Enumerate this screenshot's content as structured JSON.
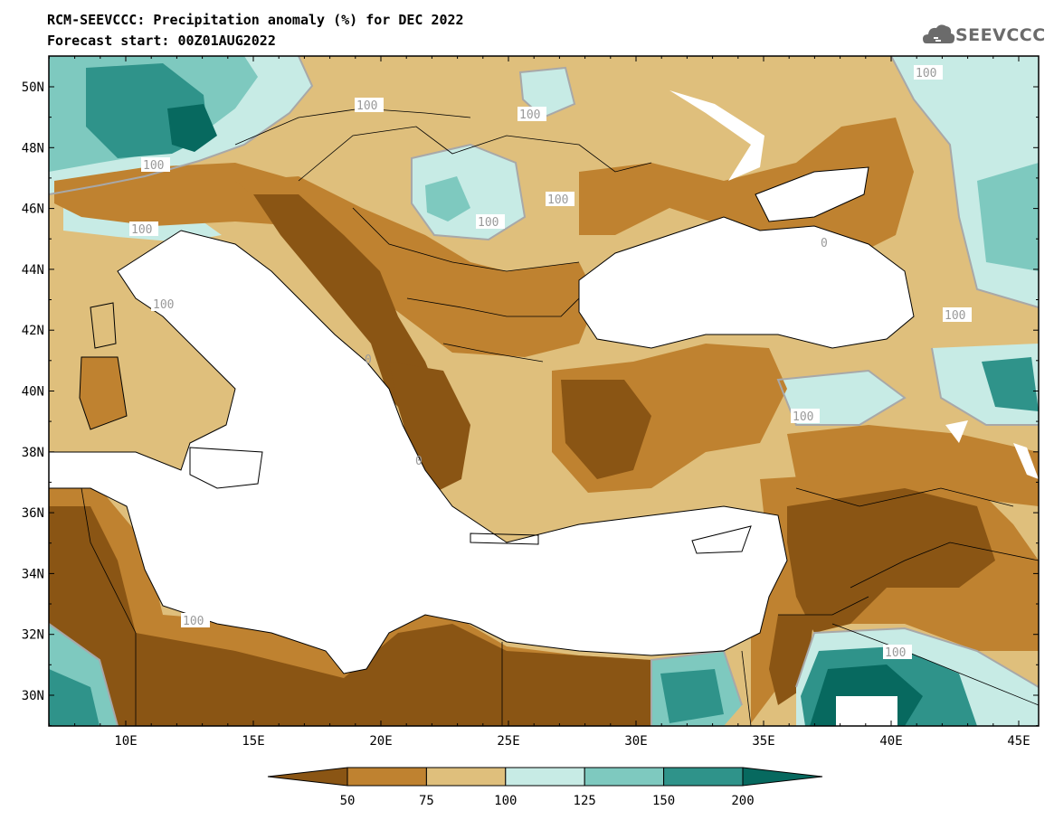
{
  "header": {
    "title_line1": "RCM-SEEVCCC: Precipitation anomaly (%) for DEC 2022",
    "title_line2": "Forecast start: 00Z01AUG2022"
  },
  "logo": {
    "text": "SEEVCCC",
    "icon": "cloud-icon"
  },
  "map": {
    "lat_labels": [
      "50N",
      "48N",
      "46N",
      "44N",
      "42N",
      "40N",
      "38N",
      "36N",
      "34N",
      "32N",
      "30N"
    ],
    "lon_labels": [
      "10E",
      "15E",
      "20E",
      "25E",
      "30E",
      "35E",
      "40E",
      "45E"
    ],
    "contour_labels": [
      "100",
      "100",
      "100",
      "100",
      "100",
      "100",
      "100",
      "100",
      "100",
      "100",
      "100",
      "100",
      "0",
      "0",
      "0",
      "0"
    ]
  },
  "colorbar": {
    "labels": [
      "50",
      "75",
      "100",
      "125",
      "150",
      "200"
    ],
    "colors": [
      "#8a5514",
      "#bf8230",
      "#dfbf7c",
      "#c7ebe5",
      "#7ec9bf",
      "#2f938a",
      "#07695f"
    ]
  },
  "palette": {
    "very_dry": "#8a5514",
    "dry": "#bf8230",
    "slightly_dry": "#dfbf7c",
    "slightly_wet": "#c7ebe5",
    "wet": "#7ec9bf",
    "very_wet": "#2f938a",
    "extreme_wet": "#07695f",
    "contour": "#a8a8a8"
  }
}
